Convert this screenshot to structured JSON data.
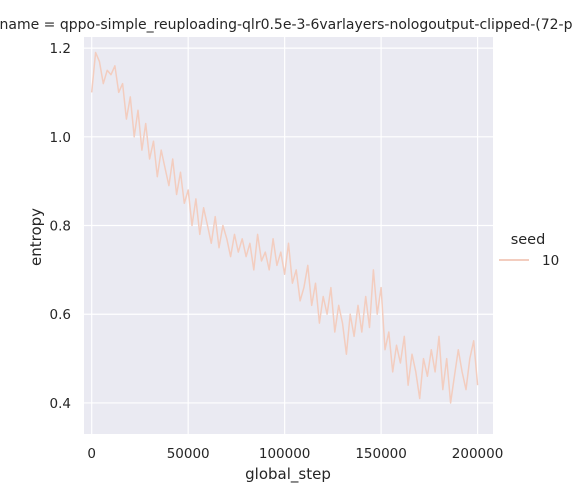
{
  "chart_data": {
    "type": "line",
    "title": "name = qppo-simple_reuploading-qlr0.5e-3-6varlayers-nologoutput-clipped-(72-p",
    "xlabel": "global_step",
    "ylabel": "entropy",
    "xlim": [
      -4000,
      208000
    ],
    "ylim": [
      0.33,
      1.225
    ],
    "xticks": [
      0,
      50000,
      100000,
      150000,
      200000
    ],
    "xtick_labels": [
      "0",
      "50000",
      "100000",
      "150000",
      "200000"
    ],
    "yticks": [
      0.4,
      0.6,
      0.8,
      1.0,
      1.2
    ],
    "ytick_labels": [
      "0.4",
      "0.6",
      "0.8",
      "1.0",
      "1.2"
    ],
    "grid": true,
    "legend": {
      "title": "seed",
      "position": "right",
      "entries": [
        {
          "label": "10",
          "color": "#f3cdbf"
        }
      ]
    },
    "series": [
      {
        "name": "10",
        "color": "#f3cdbf",
        "x": [
          0,
          2000,
          4000,
          6000,
          8000,
          10000,
          12000,
          14000,
          16000,
          18000,
          20000,
          22000,
          24000,
          26000,
          28000,
          30000,
          32000,
          34000,
          36000,
          38000,
          40000,
          42000,
          44000,
          46000,
          48000,
          50000,
          52000,
          54000,
          56000,
          58000,
          60000,
          62000,
          64000,
          66000,
          68000,
          70000,
          72000,
          74000,
          76000,
          78000,
          80000,
          82000,
          84000,
          86000,
          88000,
          90000,
          92000,
          94000,
          96000,
          98000,
          100000,
          102000,
          104000,
          106000,
          108000,
          110000,
          112000,
          114000,
          116000,
          118000,
          120000,
          122000,
          124000,
          126000,
          128000,
          130000,
          132000,
          134000,
          136000,
          138000,
          140000,
          142000,
          144000,
          146000,
          148000,
          150000,
          152000,
          154000,
          156000,
          158000,
          160000,
          162000,
          164000,
          166000,
          168000,
          170000,
          172000,
          174000,
          176000,
          178000,
          180000,
          182000,
          184000,
          186000,
          188000,
          190000,
          192000,
          194000,
          196000,
          198000,
          200000
        ],
        "values": [
          1.1,
          1.19,
          1.17,
          1.12,
          1.15,
          1.14,
          1.16,
          1.1,
          1.12,
          1.04,
          1.09,
          1.0,
          1.06,
          0.97,
          1.03,
          0.95,
          0.99,
          0.91,
          0.97,
          0.93,
          0.89,
          0.95,
          0.87,
          0.92,
          0.85,
          0.88,
          0.8,
          0.86,
          0.78,
          0.84,
          0.8,
          0.76,
          0.82,
          0.75,
          0.8,
          0.77,
          0.73,
          0.78,
          0.74,
          0.77,
          0.73,
          0.76,
          0.7,
          0.78,
          0.72,
          0.74,
          0.7,
          0.77,
          0.71,
          0.74,
          0.69,
          0.76,
          0.67,
          0.7,
          0.63,
          0.66,
          0.71,
          0.62,
          0.67,
          0.58,
          0.64,
          0.6,
          0.66,
          0.56,
          0.62,
          0.58,
          0.51,
          0.6,
          0.55,
          0.62,
          0.56,
          0.64,
          0.57,
          0.7,
          0.6,
          0.66,
          0.52,
          0.56,
          0.47,
          0.53,
          0.49,
          0.55,
          0.44,
          0.51,
          0.47,
          0.41,
          0.5,
          0.46,
          0.52,
          0.47,
          0.55,
          0.43,
          0.5,
          0.4,
          0.46,
          0.52,
          0.47,
          0.43,
          0.5,
          0.54,
          0.44
        ]
      }
    ]
  }
}
